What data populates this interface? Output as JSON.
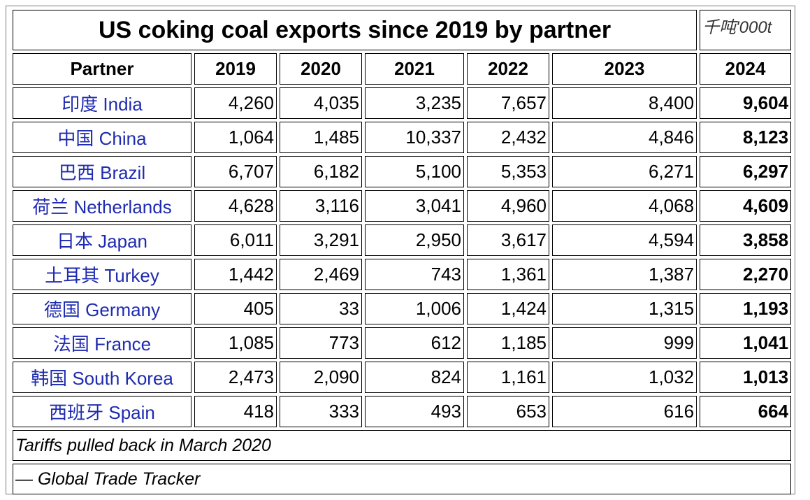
{
  "title": "US coking coal exports since 2019 by partner",
  "unit": "千吨'000t",
  "colors": {
    "partner_text": "#1f2bb0",
    "border": "#000000"
  },
  "chart_data": {
    "type": "table",
    "title": "US coking coal exports since 2019 by partner",
    "unit": "千吨'000t",
    "columns": [
      "Partner",
      "2019",
      "2020",
      "2021",
      "2022",
      "2023",
      "2024"
    ],
    "rows": [
      [
        "印度 India",
        "4,260",
        "4,035",
        "3,235",
        "7,657",
        "8,400",
        "9,604"
      ],
      [
        "中国 China",
        "1,064",
        "1,485",
        "10,337",
        "2,432",
        "4,846",
        "8,123"
      ],
      [
        "巴西 Brazil",
        "6,707",
        "6,182",
        "5,100",
        "5,353",
        "6,271",
        "6,297"
      ],
      [
        "荷兰 Netherlands",
        "4,628",
        "3,116",
        "3,041",
        "4,960",
        "4,068",
        "4,609"
      ],
      [
        "日本 Japan",
        "6,011",
        "3,291",
        "2,950",
        "3,617",
        "4,594",
        "3,858"
      ],
      [
        "土耳其 Turkey",
        "1,442",
        "2,469",
        "743",
        "1,361",
        "1,387",
        "2,270"
      ],
      [
        "德国 Germany",
        "405",
        "33",
        "1,006",
        "1,424",
        "1,315",
        "1,193"
      ],
      [
        "法国 France",
        "1,085",
        "773",
        "612",
        "1,185",
        "999",
        "1,041"
      ],
      [
        "韩国 South Korea",
        "2,473",
        "2,090",
        "824",
        "1,161",
        "1,032",
        "1,013"
      ],
      [
        "西班牙 Spain",
        "418",
        "333",
        "493",
        "653",
        "616",
        "664"
      ]
    ],
    "notes": [
      "Tariffs pulled back in March 2020",
      "— Global Trade Tracker"
    ]
  }
}
